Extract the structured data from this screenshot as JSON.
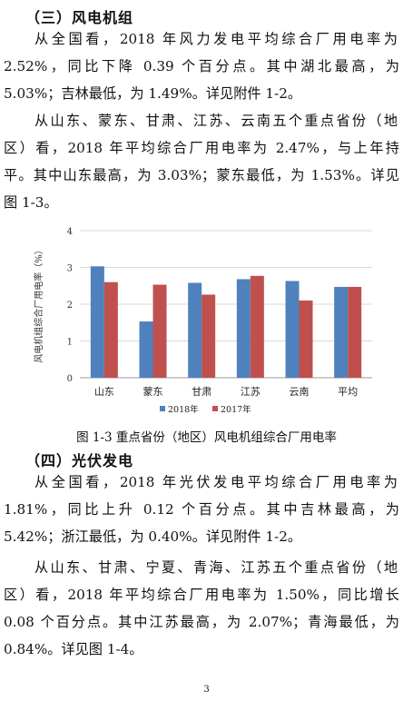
{
  "section3": {
    "heading": "（三）风电机组",
    "p1": [
      "从全国看，2018 年风力发电平均综合厂用电率为",
      "2.52%，同比下降 0.39 个百分点。其中湖北最高，为",
      "5.03%；吉林最低，为 1.49%。详见附件 1-2。"
    ],
    "p2": [
      "从山东、蒙东、甘肃、江苏、云南五个重点省份（地",
      "区）看，2018 年平均综合厂用电率为 2.47%，与上年持",
      "平。其中山东最高，为 3.03%；蒙东最低，为 1.53%。详见",
      "图 1-3。"
    ]
  },
  "figure": {
    "caption": "图 1-3 重点省份（地区）风电机组综合厂用电率"
  },
  "chart_data": {
    "type": "bar",
    "categories": [
      "山东",
      "蒙东",
      "甘肃",
      "江苏",
      "云南",
      "平均"
    ],
    "series": [
      {
        "name": "2018年",
        "values": [
          3.03,
          1.53,
          2.58,
          2.68,
          2.63,
          2.47
        ],
        "color": "#4f81bd"
      },
      {
        "name": "2017年",
        "values": [
          2.6,
          2.53,
          2.26,
          2.77,
          2.1,
          2.47
        ],
        "color": "#c0504d"
      }
    ],
    "title": "",
    "xlabel": "",
    "ylabel": "风电机组综合厂用电率（%）",
    "ylim": [
      0,
      4
    ],
    "yticks": [
      "0",
      "1",
      "2",
      "3",
      "4"
    ],
    "grid": true,
    "legend_position": "bottom"
  },
  "section4": {
    "heading": "（四）光伏发电",
    "p1": [
      "从全国看，2018 年光伏发电平均综合厂用电率为",
      "1.81%，同比上升 0.12 个百分点。其中吉林最高，为",
      "5.42%；浙江最低，为 0.40%。详见附件 1-2。"
    ],
    "p2": [
      "从山东、甘肃、宁夏、青海、江苏五个重点省份（地",
      "区）看，2018 年平均综合厂用电率为 1.50%，同比增长",
      "0.08 个百分点。其中江苏最高，为 2.07%；青海最低，为",
      "0.84%。详见图 1-4。"
    ]
  },
  "page_number": "3"
}
